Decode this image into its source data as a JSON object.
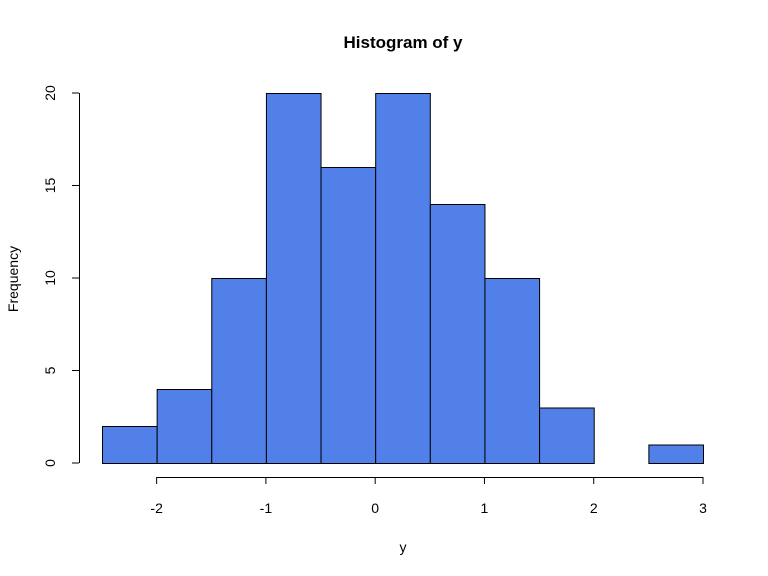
{
  "chart_data": {
    "type": "bar",
    "title": "Histogram of y",
    "xlabel": "y",
    "ylabel": "Frequency",
    "bin_edges": [
      -2.5,
      -2.0,
      -1.5,
      -1.0,
      -0.5,
      0.0,
      0.5,
      1.0,
      1.5,
      2.0,
      2.5,
      3.0
    ],
    "values": [
      2,
      4,
      10,
      20,
      16,
      20,
      14,
      10,
      3,
      0,
      1
    ],
    "x_ticks": [
      -2,
      -1,
      0,
      1,
      2,
      3
    ],
    "x_tick_labels": [
      "-2",
      "-1",
      "0",
      "1",
      "2",
      "3"
    ],
    "y_ticks": [
      0,
      5,
      10,
      15,
      20
    ],
    "y_tick_labels": [
      "0",
      "5",
      "10",
      "15",
      "20"
    ],
    "xlim": [
      -2.5,
      3.0
    ],
    "ylim": [
      0,
      20
    ],
    "grid": false,
    "bar_color": "#5080E8",
    "edge_color": "#000000"
  }
}
